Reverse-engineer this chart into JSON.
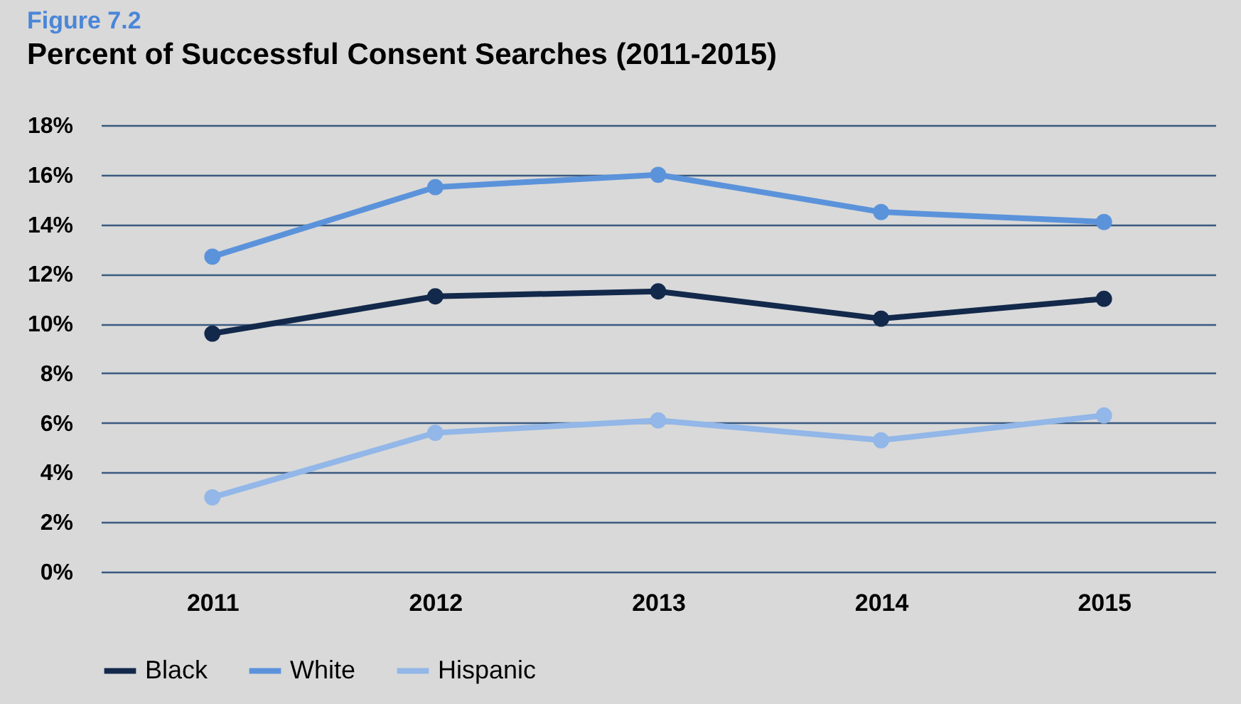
{
  "chart_data": {
    "type": "line",
    "title": "Figure 7.2",
    "subtitle": "Percent of Successful Consent Searches (2011-2015)",
    "categories": [
      "2011",
      "2012",
      "2013",
      "2014",
      "2015"
    ],
    "series": [
      {
        "name": "Black",
        "color": "#13294b",
        "values": [
          9.6,
          11.1,
          11.3,
          10.2,
          11.0
        ]
      },
      {
        "name": "White",
        "color": "#5b93db",
        "values": [
          12.7,
          15.5,
          16.0,
          14.5,
          14.1
        ]
      },
      {
        "name": "Hispanic",
        "color": "#92b7e8",
        "values": [
          3.0,
          5.6,
          6.1,
          5.3,
          6.3
        ]
      }
    ],
    "ylim": [
      0,
      18
    ],
    "yticks": [
      {
        "value": 0,
        "label": "0%"
      },
      {
        "value": 2,
        "label": "2%"
      },
      {
        "value": 4,
        "label": "4%"
      },
      {
        "value": 6,
        "label": "6%"
      },
      {
        "value": 8,
        "label": "8%"
      },
      {
        "value": 10,
        "label": "10%"
      },
      {
        "value": 12,
        "label": "12%"
      },
      {
        "value": 14,
        "label": "14%"
      },
      {
        "value": 16,
        "label": "16%"
      },
      {
        "value": 18,
        "label": "18%"
      }
    ],
    "grid": "y",
    "legend": "bottom",
    "marker": "circle",
    "line_style": "solid"
  }
}
